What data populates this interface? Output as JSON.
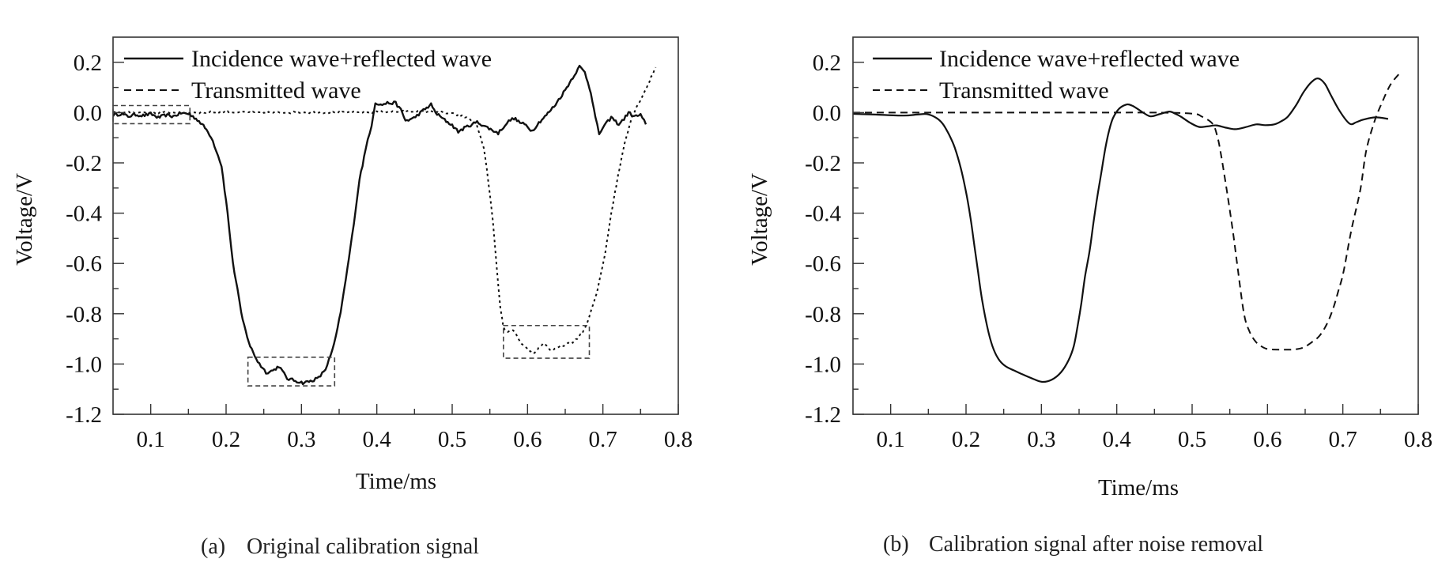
{
  "figure": {
    "panels_count": 2
  },
  "chart_data": [
    {
      "type": "line",
      "panel_id": "a",
      "caption_label": "(a)",
      "caption_text": "Original calibration signal",
      "xlabel": "Time/ms",
      "ylabel": "Voltage/V",
      "xlim": [
        0.05,
        0.8
      ],
      "ylim": [
        -1.2,
        0.3
      ],
      "x_ticks": [
        0.1,
        0.2,
        0.3,
        0.4,
        0.5,
        0.6,
        0.7,
        0.8
      ],
      "x_tick_labels": [
        "0.1",
        "0.2",
        "0.3",
        "0.4",
        "0.5",
        "0.6",
        "0.7",
        "0.8"
      ],
      "y_ticks": [
        0.2,
        0.0,
        -0.2,
        -0.4,
        -0.6,
        -0.8,
        -1.0,
        -1.2
      ],
      "y_tick_labels": [
        "0.2",
        "0.0",
        "-0.2",
        "-0.4",
        "-0.6",
        "-0.8",
        "-1.0",
        "-1.2"
      ],
      "grid": false,
      "legend_position": "top-left",
      "series": [
        {
          "name": "Incidence wave+reflected wave",
          "style": "solid",
          "noisy": true,
          "x": [
            0.05,
            0.06,
            0.07,
            0.08,
            0.09,
            0.1,
            0.11,
            0.12,
            0.13,
            0.14,
            0.15,
            0.162,
            0.172,
            0.18,
            0.187,
            0.194,
            0.202,
            0.209,
            0.215,
            0.22,
            0.226,
            0.232,
            0.242,
            0.253,
            0.258,
            0.264,
            0.27,
            0.275,
            0.281,
            0.29,
            0.302,
            0.312,
            0.323,
            0.332,
            0.341,
            0.348,
            0.354,
            0.361,
            0.367,
            0.372,
            0.377,
            0.383,
            0.388,
            0.393,
            0.398,
            0.405,
            0.414,
            0.425,
            0.432,
            0.438,
            0.444,
            0.449,
            0.46,
            0.472,
            0.476,
            0.48,
            0.49,
            0.5,
            0.508,
            0.52,
            0.533,
            0.547,
            0.561,
            0.57,
            0.575,
            0.582,
            0.59,
            0.598,
            0.606,
            0.615,
            0.625,
            0.637,
            0.65,
            0.66,
            0.669,
            0.676,
            0.684,
            0.69,
            0.695,
            0.7,
            0.711,
            0.721,
            0.728,
            0.734,
            0.742,
            0.75,
            0.757
          ],
          "y": [
            -0.01,
            -0.005,
            -0.015,
            -0.008,
            -0.012,
            -0.005,
            -0.02,
            -0.01,
            -0.015,
            -0.002,
            -0.005,
            -0.028,
            -0.06,
            -0.095,
            -0.15,
            -0.212,
            -0.4,
            -0.6,
            -0.7,
            -0.8,
            -0.87,
            -0.93,
            -0.99,
            -1.033,
            -1.03,
            -1.023,
            -1.008,
            -1.03,
            -1.058,
            -1.065,
            -1.075,
            -1.068,
            -1.055,
            -1.02,
            -0.948,
            -0.86,
            -0.758,
            -0.62,
            -0.496,
            -0.38,
            -0.265,
            -0.18,
            -0.107,
            -0.05,
            0.041,
            0.03,
            0.038,
            0.038,
            0.01,
            -0.032,
            -0.028,
            -0.022,
            0.005,
            0.032,
            0.01,
            -0.006,
            -0.03,
            -0.05,
            -0.076,
            -0.055,
            -0.038,
            -0.06,
            -0.082,
            -0.05,
            -0.035,
            -0.022,
            -0.04,
            -0.05,
            -0.073,
            -0.04,
            -0.01,
            0.032,
            0.09,
            0.14,
            0.183,
            0.16,
            0.082,
            -0.02,
            -0.085,
            -0.06,
            -0.019,
            -0.047,
            -0.025,
            0.0,
            -0.016,
            -0.009,
            -0.047
          ]
        },
        {
          "name": "Transmitted wave",
          "style": "dashed",
          "noisy": true,
          "x": [
            0.05,
            0.1,
            0.15,
            0.2,
            0.25,
            0.3,
            0.35,
            0.4,
            0.45,
            0.48,
            0.5,
            0.515,
            0.525,
            0.532,
            0.542,
            0.548,
            0.554,
            0.559,
            0.564,
            0.568,
            0.574,
            0.581,
            0.592,
            0.608,
            0.621,
            0.632,
            0.644,
            0.66,
            0.672,
            0.679,
            0.692,
            0.703,
            0.711,
            0.72,
            0.729,
            0.739,
            0.747,
            0.758,
            0.77
          ],
          "y": [
            0.0,
            0.0,
            0.0,
            0.002,
            0.0,
            0.001,
            0.0,
            0.002,
            0.005,
            0.003,
            -0.005,
            -0.015,
            -0.028,
            -0.044,
            -0.139,
            -0.275,
            -0.433,
            -0.613,
            -0.78,
            -0.853,
            -0.875,
            -0.863,
            -0.923,
            -0.96,
            -0.916,
            -0.948,
            -0.929,
            -0.913,
            -0.88,
            -0.84,
            -0.717,
            -0.559,
            -0.401,
            -0.253,
            -0.117,
            -0.013,
            0.035,
            0.1,
            0.18
          ]
        }
      ],
      "annotations": [
        {
          "type": "dashed-box",
          "label": "noise-region-baseline",
          "x": [
            0.05,
            0.152
          ],
          "y": [
            -0.044,
            0.028
          ]
        },
        {
          "type": "dashed-box",
          "label": "noise-region-incident-trough",
          "x": [
            0.229,
            0.344
          ],
          "y": [
            -1.087,
            -0.973
          ]
        },
        {
          "type": "dashed-box",
          "label": "noise-region-transmitted-trough",
          "x": [
            0.568,
            0.682
          ],
          "y": [
            -0.977,
            -0.847
          ]
        }
      ]
    },
    {
      "type": "line",
      "panel_id": "b",
      "caption_label": "(b)",
      "caption_text": "Calibration signal after noise removal",
      "xlabel": "Time/ms",
      "ylabel": "Voltage/V",
      "xlim": [
        0.05,
        0.8
      ],
      "ylim": [
        -1.2,
        0.3
      ],
      "x_ticks": [
        0.1,
        0.2,
        0.3,
        0.4,
        0.5,
        0.6,
        0.7,
        0.8
      ],
      "x_tick_labels": [
        "0.1",
        "0.2",
        "0.3",
        "0.4",
        "0.5",
        "0.6",
        "0.7",
        "0.8"
      ],
      "y_ticks": [
        0.2,
        0.0,
        -0.2,
        -0.4,
        -0.6,
        -0.8,
        -1.0,
        -1.2
      ],
      "y_tick_labels": [
        "0.2",
        "0.0",
        "-0.2",
        "-0.4",
        "-0.6",
        "-0.8",
        "-1.0",
        "-1.2"
      ],
      "grid": false,
      "legend_position": "top-left",
      "series": [
        {
          "name": "Incidence wave+reflected wave",
          "style": "solid",
          "noisy": false,
          "x": [
            0.05,
            0.08,
            0.116,
            0.135,
            0.148,
            0.16,
            0.169,
            0.177,
            0.185,
            0.193,
            0.2,
            0.206,
            0.211,
            0.216,
            0.221,
            0.228,
            0.235,
            0.243,
            0.252,
            0.263,
            0.274,
            0.288,
            0.301,
            0.314,
            0.326,
            0.336,
            0.343,
            0.348,
            0.353,
            0.358,
            0.364,
            0.369,
            0.374,
            0.38,
            0.385,
            0.39,
            0.395,
            0.403,
            0.413,
            0.42,
            0.427,
            0.435,
            0.445,
            0.458,
            0.47,
            0.478,
            0.485,
            0.497,
            0.509,
            0.52,
            0.532,
            0.545,
            0.557,
            0.571,
            0.585,
            0.597,
            0.609,
            0.618,
            0.627,
            0.638,
            0.648,
            0.658,
            0.667,
            0.676,
            0.684,
            0.696,
            0.709,
            0.718,
            0.727,
            0.743,
            0.76
          ],
          "y": [
            -0.005,
            -0.008,
            -0.012,
            -0.008,
            -0.006,
            -0.02,
            -0.044,
            -0.085,
            -0.139,
            -0.22,
            -0.316,
            -0.42,
            -0.528,
            -0.635,
            -0.739,
            -0.85,
            -0.929,
            -0.98,
            -1.008,
            -1.025,
            -1.04,
            -1.058,
            -1.071,
            -1.062,
            -1.033,
            -0.985,
            -0.929,
            -0.85,
            -0.758,
            -0.65,
            -0.55,
            -0.44,
            -0.338,
            -0.23,
            -0.139,
            -0.07,
            -0.022,
            0.015,
            0.032,
            0.028,
            0.016,
            0.0,
            -0.015,
            -0.005,
            0.004,
            -0.005,
            -0.016,
            -0.04,
            -0.057,
            -0.055,
            -0.051,
            -0.06,
            -0.066,
            -0.058,
            -0.047,
            -0.05,
            -0.047,
            -0.035,
            -0.016,
            0.03,
            0.082,
            0.12,
            0.136,
            0.115,
            0.07,
            0.005,
            -0.044,
            -0.038,
            -0.028,
            -0.019,
            -0.025
          ]
        },
        {
          "name": "Transmitted wave",
          "style": "dashed",
          "noisy": false,
          "x": [
            0.05,
            0.15,
            0.25,
            0.35,
            0.45,
            0.5,
            0.513,
            0.527,
            0.533,
            0.538,
            0.546,
            0.554,
            0.561,
            0.569,
            0.576,
            0.584,
            0.592,
            0.601,
            0.619,
            0.635,
            0.647,
            0.658,
            0.669,
            0.679,
            0.687,
            0.694,
            0.701,
            0.711,
            0.723,
            0.731,
            0.742,
            0.752,
            0.763,
            0.774
          ],
          "y": [
            0.0,
            0.0,
            0.0,
            0.0,
            0.0,
            -0.004,
            -0.016,
            -0.044,
            -0.09,
            -0.161,
            -0.31,
            -0.471,
            -0.632,
            -0.803,
            -0.87,
            -0.91,
            -0.93,
            -0.941,
            -0.943,
            -0.942,
            -0.935,
            -0.915,
            -0.888,
            -0.84,
            -0.78,
            -0.71,
            -0.632,
            -0.471,
            -0.31,
            -0.152,
            -0.035,
            0.04,
            0.11,
            0.152
          ]
        }
      ],
      "annotations": []
    }
  ]
}
